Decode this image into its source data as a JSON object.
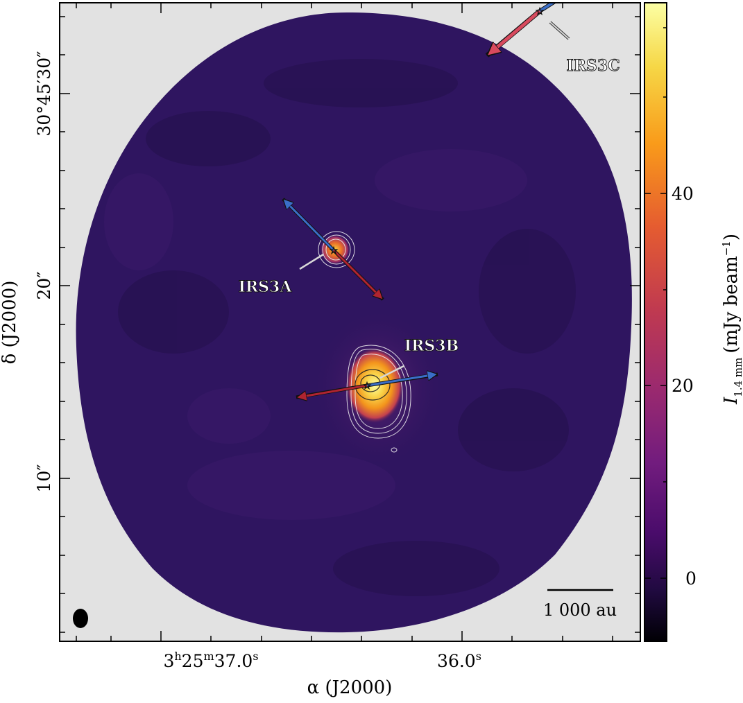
{
  "image": {
    "x_axis_label": "α (J2000)",
    "y_axis_label": "δ (J2000)",
    "x_ticks": [
      {
        "h": "3",
        "m": "25",
        "s": "37.0",
        "sup_h": "h",
        "sup_m": "m",
        "sup_s": "s"
      },
      {
        "s": "36.0",
        "sup_s": "s"
      }
    ],
    "y_ticks": [
      {
        "value": "30°45′30″"
      },
      {
        "value": "20″"
      },
      {
        "value": "10″"
      }
    ],
    "colorbar": {
      "label_main": "I",
      "label_sub": "1.4 mm",
      "label_units": "(mJy beam",
      "label_exp": "−1",
      "label_close": ")",
      "ticks": [
        "40",
        "20",
        "0"
      ],
      "colors": [
        "#fcffa4",
        "#f6d746",
        "#f99b1a",
        "#e55c30",
        "#c03a50",
        "#9c2a6e",
        "#721c7e",
        "#4a0c6b",
        "#200a40",
        "#000004"
      ]
    },
    "sources": [
      {
        "name": "IRS3A"
      },
      {
        "name": "IRS3B"
      },
      {
        "name": "IRS3C"
      }
    ],
    "scalebar_label": "1 000 au",
    "colors": {
      "background": "#e2e2e2",
      "map_base": "#2f1560",
      "blue_arrow": "#3a6ec8",
      "red_arrow": "#b02430",
      "contour": "#f0f0f0"
    }
  }
}
